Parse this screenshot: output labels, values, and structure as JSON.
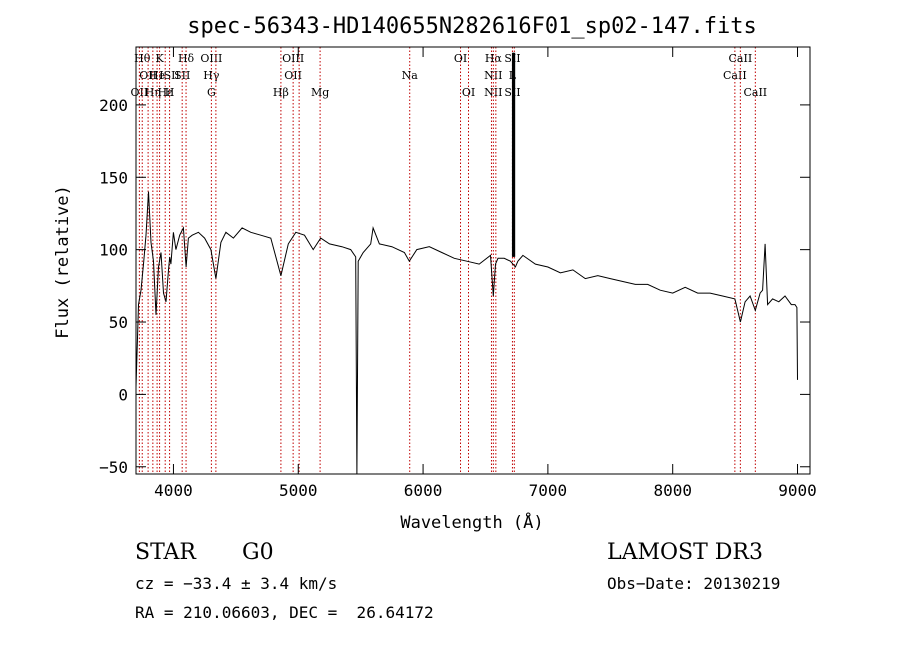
{
  "chart_data": {
    "type": "line",
    "title": "spec-56343-HD140655N282616F01_sp02-147.fits",
    "xlabel": "Wavelength (Å)",
    "ylabel": "Flux (relative)",
    "xlim": [
      3700,
      9100
    ],
    "ylim": [
      -55,
      240
    ],
    "xticks": [
      4000,
      5000,
      6000,
      7000,
      8000,
      9000
    ],
    "yticks": [
      -50,
      0,
      50,
      100,
      150,
      200
    ],
    "series": [
      {
        "name": "flux",
        "x": [
          3700,
          3720,
          3740,
          3760,
          3780,
          3800,
          3820,
          3840,
          3860,
          3880,
          3900,
          3920,
          3940,
          3960,
          3970,
          3980,
          4000,
          4020,
          4050,
          4080,
          4101,
          4120,
          4150,
          4200,
          4250,
          4300,
          4340,
          4380,
          4420,
          4480,
          4550,
          4620,
          4700,
          4780,
          4861,
          4920,
          4980,
          5050,
          5120,
          5180,
          5250,
          5350,
          5420,
          5460,
          5470,
          5480,
          5520,
          5580,
          5600,
          5650,
          5750,
          5850,
          5890,
          5950,
          6050,
          6150,
          6250,
          6350,
          6450,
          6540,
          6563,
          6580,
          6600,
          6650,
          6700,
          6720,
          6740,
          6760,
          6800,
          6900,
          7000,
          7100,
          7200,
          7300,
          7400,
          7500,
          7600,
          7700,
          7800,
          7900,
          8000,
          8100,
          8200,
          8300,
          8400,
          8498,
          8542,
          8580,
          8620,
          8662,
          8700,
          8720,
          8740,
          8760,
          8800,
          8850,
          8900,
          8950,
          8980,
          8995,
          9000
        ],
        "values": [
          5,
          62,
          72,
          90,
          110,
          140,
          105,
          92,
          55,
          88,
          98,
          70,
          64,
          86,
          95,
          90,
          112,
          100,
          110,
          115,
          88,
          108,
          110,
          112,
          108,
          100,
          80,
          105,
          112,
          108,
          115,
          112,
          110,
          108,
          82,
          104,
          112,
          110,
          100,
          108,
          104,
          102,
          100,
          95,
          -55,
          92,
          98,
          104,
          115,
          104,
          102,
          98,
          92,
          100,
          102,
          98,
          94,
          92,
          90,
          96,
          68,
          90,
          94,
          94,
          92,
          90,
          88,
          92,
          96,
          90,
          88,
          84,
          86,
          80,
          82,
          80,
          78,
          76,
          76,
          72,
          70,
          74,
          70,
          70,
          68,
          66,
          50,
          64,
          68,
          58,
          70,
          72,
          104,
          62,
          66,
          64,
          68,
          62,
          62,
          60,
          10
        ]
      }
    ],
    "spikes": [
      {
        "x": 6720,
        "value": 236
      },
      {
        "x": 6730,
        "value": 236
      }
    ],
    "lines": [
      {
        "x": 3727,
        "labels": [
          "OII"
        ],
        "row": 2
      },
      {
        "x": 3750,
        "labels": [
          "Hθ"
        ],
        "row": 0
      },
      {
        "x": 3797,
        "labels": [
          "OII"
        ],
        "row": 1
      },
      {
        "x": 3835,
        "labels": [
          "Hη"
        ],
        "row": 2
      },
      {
        "x": 3869,
        "labels": [
          "He"
        ],
        "row": 1
      },
      {
        "x": 3889,
        "labels": [
          "K"
        ],
        "row": 0
      },
      {
        "x": 3934,
        "labels": [
          "Hε"
        ],
        "row": 2
      },
      {
        "x": 3969,
        "labels": [
          "ISII",
          "H"
        ],
        "row": 1
      },
      {
        "x": 4101,
        "labels": [
          "Hδ"
        ],
        "row": 0
      },
      {
        "x": 4070,
        "labels": [
          "SII"
        ],
        "row": 1
      },
      {
        "x": 4304,
        "labels": [
          "OIII",
          "Hγ",
          "G"
        ],
        "row": 0
      },
      {
        "x": 4340,
        "labels": [],
        "row": 0
      },
      {
        "x": 4861,
        "labels": [
          "Hβ"
        ],
        "row": 2
      },
      {
        "x": 4959,
        "labels": [
          "OIII",
          "OII"
        ],
        "row": 0
      },
      {
        "x": 5007,
        "labels": [],
        "row": 0
      },
      {
        "x": 5175,
        "labels": [
          "Mg"
        ],
        "row": 2
      },
      {
        "x": 5893,
        "labels": [
          "Na"
        ],
        "row": 1
      },
      {
        "x": 6300,
        "labels": [
          "OI"
        ],
        "row": 0
      },
      {
        "x": 6364,
        "labels": [
          "OI"
        ],
        "row": 2
      },
      {
        "x": 6548,
        "labels": [],
        "row": 0
      },
      {
        "x": 6563,
        "labels": [
          "Hα",
          "NII",
          "NII"
        ],
        "row": 0
      },
      {
        "x": 6583,
        "labels": [],
        "row": 0
      },
      {
        "x": 6716,
        "labels": [
          "SII",
          "L",
          "SII"
        ],
        "row": 0
      },
      {
        "x": 6731,
        "labels": [],
        "row": 0
      },
      {
        "x": 8498,
        "labels": [
          "CaII"
        ],
        "row": 1
      },
      {
        "x": 8542,
        "labels": [
          "CaII"
        ],
        "row": 0
      },
      {
        "x": 8662,
        "labels": [
          "CaII"
        ],
        "row": 2
      }
    ]
  },
  "info": {
    "object_class": "STAR",
    "subclass": "G0",
    "survey": "LAMOST DR3",
    "redshift": "cz = −33.4 ± 3.4 km/s",
    "obs_date": "Obs−Date: 20130219",
    "coords": "RA = 210.06603, DEC =  26.64172"
  }
}
